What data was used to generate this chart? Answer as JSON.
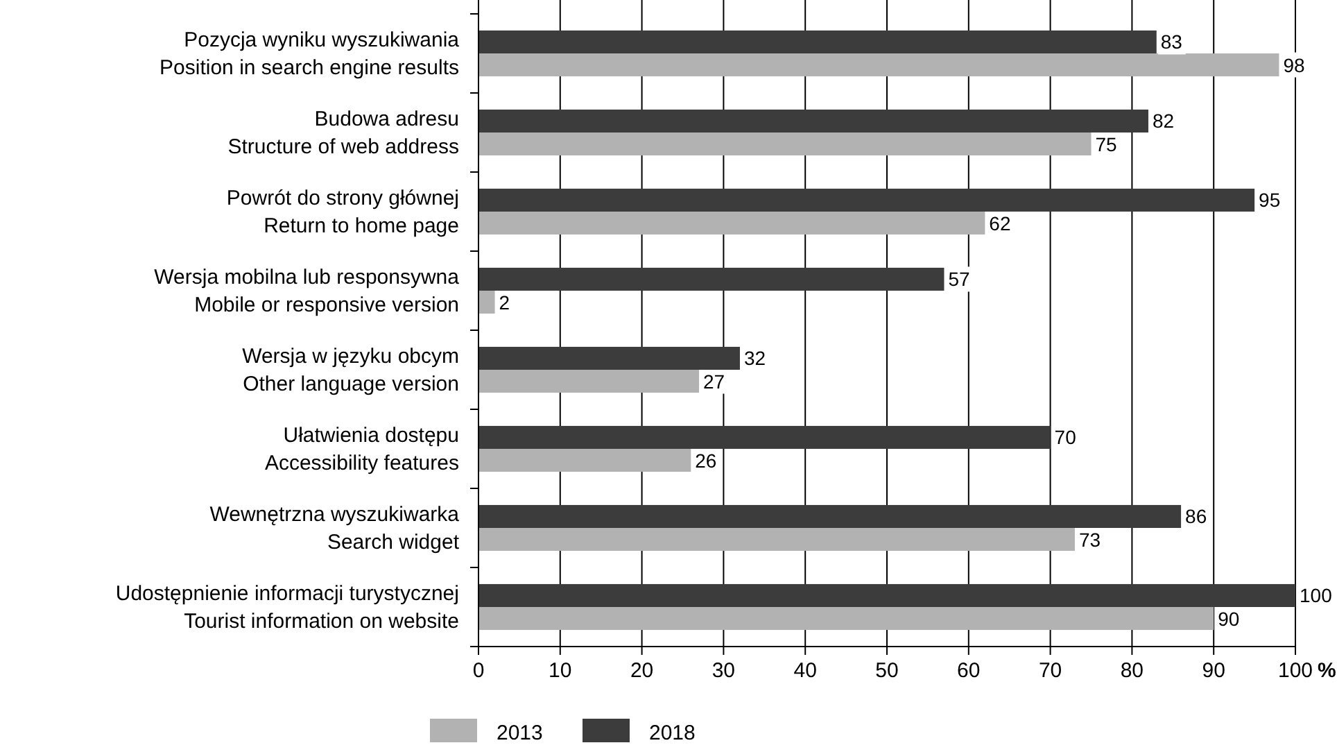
{
  "chart_data": {
    "type": "bar",
    "orientation": "horizontal",
    "categories": [
      "Pozycja wyniku wyszukiwania\nPosition in search engine results",
      "Budowa adresu\nStructure of web address",
      "Powrót do strony głównej\nReturn to home page",
      "Wersja mobilna lub responsywna\nMobile or responsive version",
      "Wersja w języku obcym\nOther language version",
      "Ułatwienia dostępu\nAccessibility features",
      "Wewnętrzna wyszukiwarka\nSearch widget",
      "Udostępnienie informacji turystycznej\nTourist information on website"
    ],
    "series": [
      {
        "name": "2013",
        "color": "#b2b2b2",
        "values": [
          98,
          75,
          62,
          2,
          27,
          26,
          73,
          90
        ]
      },
      {
        "name": "2018",
        "color": "#3c3c3c",
        "values": [
          83,
          82,
          95,
          57,
          32,
          70,
          86,
          100
        ]
      }
    ],
    "xlim": [
      0,
      100
    ],
    "xticks": [
      0,
      10,
      20,
      30,
      40,
      50,
      60,
      70,
      80,
      90,
      100
    ],
    "xlabel": "%",
    "grid": "x",
    "legend": "bottom",
    "data_labels": true
  }
}
